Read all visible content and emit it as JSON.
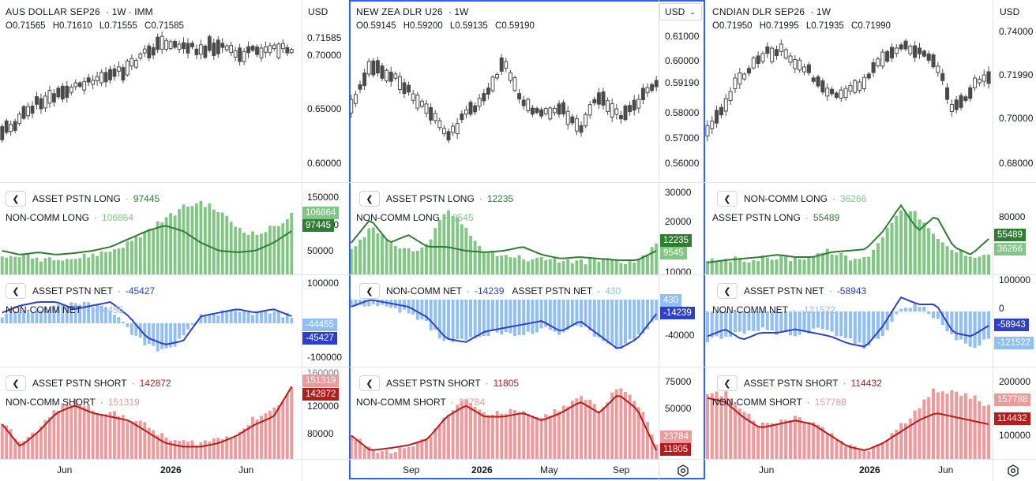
{
  "colors": {
    "long_dark": "#2e7d32",
    "long_light": "#81c784",
    "net_dark": "#2f40c8",
    "net_light": "#90bff5",
    "short_dark": "#b71c1c",
    "short_light": "#ef9a9a",
    "candle": "#4a4a4a",
    "accent": "#2962ff"
  },
  "columns": [
    {
      "symbol": "AUS DOLLAR SEP26",
      "timeframe": "· 1W · IMM",
      "ohlc": {
        "o": "0.71565",
        "h": "0.71610",
        "l": "0.71555",
        "c": "0.71585"
      },
      "currency": "USD",
      "price_axis": [
        "0.70000",
        "0.65000",
        "0.60000"
      ],
      "price_tag": "0.71585",
      "long": {
        "name1": "ASSET PSTN LONG",
        "val1": "97445",
        "name2": "NON-COMM LONG",
        "val2": "106864",
        "axis": [
          "150000",
          "100000",
          "50000"
        ],
        "tag_top": "106864",
        "tag_bot": "97445"
      },
      "net": {
        "name1": "ASSET PSTN NET",
        "val1": "-45427",
        "name2": "NON-COMM NET",
        "val2": "-44455",
        "axis": [
          "100000",
          "0",
          "-100000"
        ],
        "tag_top": "-44455",
        "tag_bot": "-45427"
      },
      "short": {
        "name1": "ASSET PSTN SHORT",
        "val1": "142872",
        "name2": "NON-COMM SHORT",
        "val2": "151319",
        "axis": [
          "160000",
          "120000",
          "80000"
        ],
        "tag_top": "151319",
        "tag_bot": "142872"
      },
      "time_axis": [
        {
          "label": "Jun",
          "bold": false
        },
        {
          "label": "2026",
          "bold": true
        },
        {
          "label": "Jun",
          "bold": false
        }
      ]
    },
    {
      "symbol": "NEW ZEA DLR U26",
      "timeframe": "· 1W",
      "ohlc": {
        "o": "0.59145",
        "h": "0.59200",
        "l": "0.59135",
        "c": "0.59190"
      },
      "currency": "USD",
      "price_axis": [
        "0.61000",
        "0.60000",
        "0.58000",
        "0.57000",
        "0.56000"
      ],
      "price_tag": "0.59190",
      "long": {
        "name1": "ASSET PSTN LONG",
        "val1": "12235",
        "name2": "NON-COMM LONG",
        "val2": "9545",
        "axis": [
          "30000",
          "20000",
          "10000"
        ],
        "tag_top": "12235",
        "tag_bot": "9545"
      },
      "net": {
        "name1": "NON-COMM NET",
        "val1": "-14239",
        "name2": "ASSET PSTN NET",
        "val2": "430",
        "axis": [
          "-40000"
        ],
        "tag_top": "430",
        "tag_bot": "-14239"
      },
      "short": {
        "name1": "ASSET PSTN SHORT",
        "val1": "11805",
        "name2": "NON-COMM SHORT",
        "val2": "23784",
        "axis": [
          "75000",
          "50000"
        ],
        "tag_top": "23784",
        "tag_bot": "11805"
      },
      "time_axis": [
        {
          "label": "Sep",
          "bold": false
        },
        {
          "label": "2026",
          "bold": true
        },
        {
          "label": "May",
          "bold": false
        },
        {
          "label": "Sep",
          "bold": false
        }
      ]
    },
    {
      "symbol": "CNDIAN DLR SEP26",
      "timeframe": "· 1W",
      "ohlc": {
        "o": "0.71950",
        "h": "0.71995",
        "l": "0.71935",
        "c": "0.71990"
      },
      "currency": "USD",
      "price_axis": [
        "0.74000",
        "0.70000",
        "0.68000"
      ],
      "price_tag": "0.71990",
      "long": {
        "name1": "NON-COMM LONG",
        "val1": "36266",
        "name2": "ASSET PSTN LONG",
        "val2": "55489",
        "axis": [
          "80000"
        ],
        "tag_top": "55489",
        "tag_bot": "36266"
      },
      "net": {
        "name1": "ASSET PSTN NET",
        "val1": "-58943",
        "name2": "NON-COMM NET",
        "val2": "-121522",
        "axis": [
          "100000",
          "0",
          "-100000"
        ],
        "tag_top": "-58943",
        "tag_bot": "-121522"
      },
      "short": {
        "name1": "ASSET PSTN SHORT",
        "val1": "114432",
        "name2": "NON-COMM SHORT",
        "val2": "157788",
        "axis": [
          "200000",
          "100000"
        ],
        "tag_top": "157788",
        "tag_bot": "114432"
      },
      "time_axis": [
        {
          "label": "Jun",
          "bold": false
        },
        {
          "label": "2026",
          "bold": true
        },
        {
          "label": "Jun",
          "bold": false
        }
      ]
    }
  ]
}
